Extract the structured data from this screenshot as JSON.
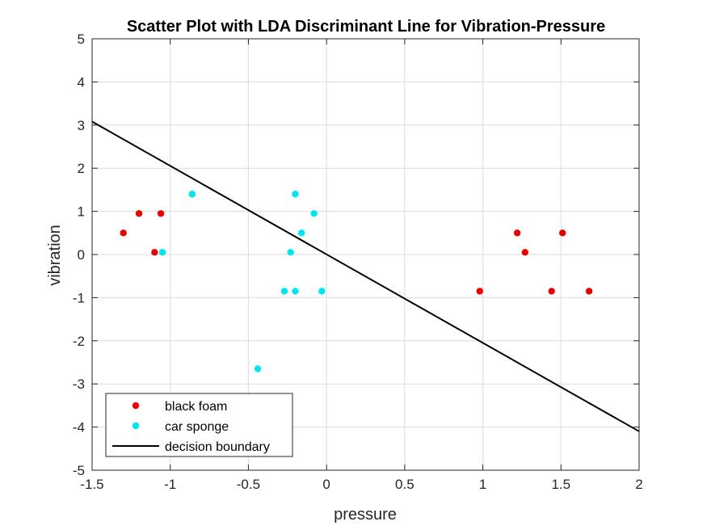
{
  "chart_data": {
    "type": "scatter",
    "title": "Scatter Plot with LDA Discriminant Line for Vibration-Pressure",
    "xlabel": "pressure",
    "ylabel": "vibration",
    "xlim": [
      -1.5,
      2
    ],
    "ylim": [
      -5,
      5
    ],
    "xticks": [
      -1.5,
      -1,
      -0.5,
      0,
      0.5,
      1,
      1.5,
      2
    ],
    "yticks": [
      -5,
      -4,
      -3,
      -2,
      -1,
      0,
      1,
      2,
      3,
      4,
      5
    ],
    "xtick_labels": [
      "-1.5",
      "-1",
      "-0.5",
      "0",
      "0.5",
      "1",
      "1.5",
      "2"
    ],
    "ytick_labels": [
      "-5",
      "-4",
      "-3",
      "-2",
      "-1",
      "0",
      "1",
      "2",
      "3",
      "4",
      "5"
    ],
    "grid": true,
    "legend_position": "bottom-left",
    "series": [
      {
        "name": "black foam",
        "color": "#e60000",
        "marker": "dot",
        "points": [
          [
            -1.3,
            0.5
          ],
          [
            -1.2,
            0.95
          ],
          [
            -1.06,
            0.95
          ],
          [
            -1.1,
            0.05
          ],
          [
            0.98,
            -0.85
          ],
          [
            1.22,
            0.5
          ],
          [
            1.27,
            0.05
          ],
          [
            1.44,
            -0.85
          ],
          [
            1.51,
            0.5
          ],
          [
            1.68,
            -0.85
          ]
        ]
      },
      {
        "name": "car sponge",
        "color": "#00e5f2",
        "marker": "dot",
        "points": [
          [
            -0.86,
            1.4
          ],
          [
            -1.05,
            0.05
          ],
          [
            -0.2,
            1.4
          ],
          [
            -0.08,
            0.95
          ],
          [
            -0.16,
            0.5
          ],
          [
            -0.23,
            0.05
          ],
          [
            -0.27,
            -0.85
          ],
          [
            -0.2,
            -0.85
          ],
          [
            -0.03,
            -0.85
          ],
          [
            -0.44,
            -2.65
          ]
        ]
      }
    ],
    "lines": [
      {
        "name": "decision boundary",
        "color": "#000000",
        "points": [
          [
            -1.5,
            3.08
          ],
          [
            2,
            -4.1
          ]
        ]
      }
    ]
  }
}
